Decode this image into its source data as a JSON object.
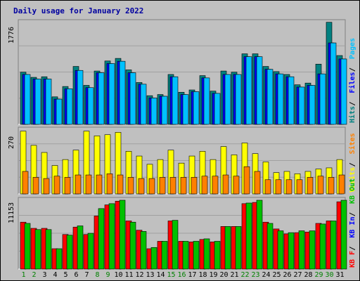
{
  "title": "Daily usage for January 2022",
  "chart_data": [
    {
      "type": "bar",
      "panel": "pages-files-hits",
      "y_max_label": "1776",
      "ylim": [
        0,
        1776
      ],
      "categories": [
        "1",
        "2",
        "3",
        "4",
        "5",
        "6",
        "7",
        "8",
        "9",
        "10",
        "11",
        "12",
        "13",
        "14",
        "15",
        "16",
        "17",
        "18",
        "19",
        "20",
        "21",
        "22",
        "23",
        "24",
        "25",
        "26",
        "27",
        "28",
        "29",
        "30",
        "31"
      ],
      "weekend_days": [
        "1",
        "2",
        "8",
        "9",
        "15",
        "16",
        "22",
        "23",
        "29",
        "30"
      ],
      "series": [
        {
          "name": "Hits",
          "color": "#008080",
          "values": [
            910,
            820,
            830,
            480,
            660,
            1010,
            680,
            930,
            1105,
            1150,
            950,
            730,
            500,
            520,
            870,
            560,
            600,
            850,
            580,
            930,
            910,
            1230,
            1230,
            1010,
            920,
            870,
            690,
            720,
            1050,
            1780,
            1200
          ]
        },
        {
          "name": "Files",
          "color": "#0000ff",
          "values": [
            870,
            790,
            790,
            440,
            620,
            940,
            640,
            900,
            1060,
            1100,
            900,
            700,
            460,
            490,
            830,
            520,
            570,
            810,
            540,
            870,
            870,
            1180,
            1180,
            960,
            880,
            830,
            650,
            680,
            880,
            1420,
            1140
          ]
        },
        {
          "name": "Pages",
          "color": "#00c0ff",
          "values": [
            870,
            790,
            790,
            440,
            620,
            940,
            640,
            900,
            1060,
            1100,
            900,
            700,
            460,
            490,
            830,
            520,
            570,
            810,
            540,
            870,
            870,
            1180,
            1180,
            960,
            880,
            830,
            650,
            680,
            880,
            1420,
            1140
          ]
        }
      ],
      "legend": [
        {
          "text": "Hits",
          "color": "#008080"
        },
        {
          "text": "Files",
          "color": "#0000ff"
        },
        {
          "text": "Pages",
          "color": "#00c0ff"
        }
      ]
    },
    {
      "type": "bar",
      "panel": "visits-sites",
      "y_max_label": "270",
      "ylim": [
        0,
        270
      ],
      "categories": [
        "1",
        "2",
        "3",
        "4",
        "5",
        "6",
        "7",
        "8",
        "9",
        "10",
        "11",
        "12",
        "13",
        "14",
        "15",
        "16",
        "17",
        "18",
        "19",
        "20",
        "21",
        "22",
        "23",
        "24",
        "25",
        "26",
        "27",
        "28",
        "29",
        "30",
        "31"
      ],
      "series": [
        {
          "name": "Visits",
          "color": "#ffff00",
          "values": [
            265,
            205,
            175,
            120,
            145,
            185,
            265,
            245,
            250,
            260,
            180,
            160,
            125,
            145,
            185,
            130,
            160,
            180,
            145,
            200,
            165,
            215,
            170,
            135,
            90,
            95,
            85,
            95,
            105,
            110,
            145
          ]
        },
        {
          "name": "Sites",
          "color": "#ff8000",
          "values": [
            95,
            70,
            65,
            75,
            70,
            80,
            80,
            80,
            85,
            80,
            70,
            65,
            65,
            70,
            70,
            70,
            70,
            75,
            75,
            80,
            75,
            115,
            95,
            60,
            60,
            60,
            60,
            70,
            75,
            70,
            80
          ]
        }
      ],
      "legend": [
        {
          "text": "Visits",
          "color": "#ffff00"
        },
        {
          "text": "Sites",
          "color": "#ff8000"
        }
      ]
    },
    {
      "type": "bar",
      "panel": "kbytes",
      "y_max_label": "11153",
      "ylim": [
        0,
        11153
      ],
      "categories": [
        "1",
        "2",
        "3",
        "4",
        "5",
        "6",
        "7",
        "8",
        "9",
        "10",
        "11",
        "12",
        "13",
        "14",
        "15",
        "16",
        "17",
        "18",
        "19",
        "20",
        "21",
        "22",
        "23",
        "24",
        "25",
        "26",
        "27",
        "28",
        "29",
        "30",
        "31"
      ],
      "series": [
        {
          "name": "KB F",
          "color": "#ff0000",
          "values": [
            7600,
            6600,
            6600,
            3300,
            5600,
            6800,
            5600,
            8600,
            10400,
            11000,
            7800,
            6300,
            3300,
            4500,
            7800,
            4500,
            4400,
            4800,
            4400,
            6900,
            6900,
            10600,
            10800,
            7600,
            6500,
            5700,
            5900,
            6000,
            7400,
            7800,
            10900
          ]
        },
        {
          "name": "KB In",
          "color": "#0000ff",
          "values": [
            0,
            0,
            0,
            0,
            0,
            0,
            0,
            0,
            0,
            0,
            0,
            0,
            0,
            0,
            0,
            0,
            0,
            0,
            0,
            0,
            0,
            0,
            0,
            0,
            0,
            0,
            0,
            0,
            0,
            0,
            0
          ]
        },
        {
          "name": "KB Out",
          "color": "#00c000",
          "values": [
            7400,
            6400,
            6400,
            3300,
            5500,
            7000,
            5800,
            9800,
            10600,
            11153,
            7600,
            6100,
            3500,
            4500,
            7900,
            4500,
            4500,
            4900,
            4500,
            6900,
            6900,
            10700,
            11153,
            7400,
            6200,
            5900,
            6200,
            6200,
            7300,
            7800,
            11153
          ]
        }
      ],
      "legend": [
        {
          "text": "KB F",
          "color": "#ff0000"
        },
        {
          "text": "KB In",
          "color": "#0000ff"
        },
        {
          "text": "KB Out",
          "color": "#00c000"
        }
      ]
    }
  ]
}
